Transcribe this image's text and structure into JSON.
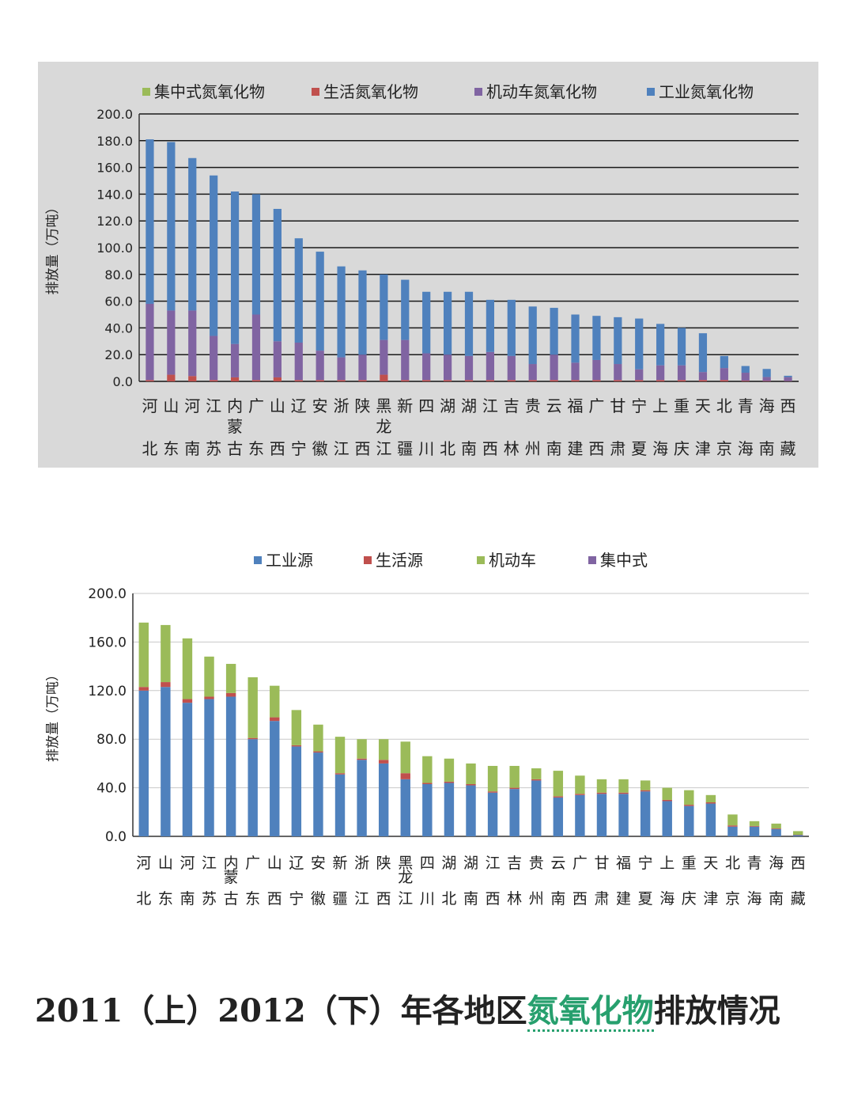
{
  "charts": [
    {
      "type": "bar",
      "stacked": true,
      "ylabel": "排放量（万吨）",
      "ylim": [
        0,
        200
      ],
      "yticks": [
        "0.0",
        "20.0",
        "40.0",
        "60.0",
        "80.0",
        "100.0",
        "120.0",
        "140.0",
        "160.0",
        "180.0",
        "200.0"
      ],
      "grid": true,
      "legend_position": "top",
      "legend": [
        {
          "name": "集中式氮氧化物",
          "color": "#9bbb59"
        },
        {
          "name": "生活氮氧化物",
          "color": "#c0504d"
        },
        {
          "name": "机动车氮氧化物",
          "color": "#8064a2"
        },
        {
          "name": "工业氮氧化物",
          "color": "#4f81bd"
        }
      ],
      "categories": [
        "河北",
        "山东",
        "河南",
        "江苏",
        "内蒙古",
        "广东",
        "山西",
        "辽宁",
        "安徽",
        "浙江",
        "陕西",
        "黑龙江",
        "新疆",
        "四川",
        "湖北",
        "湖南",
        "江西",
        "吉林",
        "贵州",
        "云南",
        "福建",
        "广西",
        "甘肃",
        "宁夏",
        "上海",
        "重庆",
        "天津",
        "北京",
        "青海",
        "海南",
        "西藏"
      ],
      "category_labels": [
        [
          "河",
          "北"
        ],
        [
          "山",
          "东"
        ],
        [
          "河",
          "南"
        ],
        [
          "江",
          "苏"
        ],
        [
          "内蒙",
          "古"
        ],
        [
          "广",
          "东"
        ],
        [
          "山",
          "西"
        ],
        [
          "辽",
          "宁"
        ],
        [
          "安",
          "徽"
        ],
        [
          "浙",
          "江"
        ],
        [
          "陕",
          "西"
        ],
        [
          "黑龙",
          "江"
        ],
        [
          "新",
          "疆"
        ],
        [
          "四",
          "川"
        ],
        [
          "湖",
          "北"
        ],
        [
          "湖",
          "南"
        ],
        [
          "江",
          "西"
        ],
        [
          "吉",
          "林"
        ],
        [
          "贵",
          "州"
        ],
        [
          "云",
          "南"
        ],
        [
          "福",
          "建"
        ],
        [
          "广",
          "西"
        ],
        [
          "甘",
          "肃"
        ],
        [
          "宁",
          "夏"
        ],
        [
          "上",
          "海"
        ],
        [
          "重",
          "庆"
        ],
        [
          "天",
          "津"
        ],
        [
          "北",
          "京"
        ],
        [
          "青",
          "海"
        ],
        [
          "海",
          "南"
        ],
        [
          "西",
          "藏"
        ]
      ],
      "series": [
        {
          "name": "生活氮氧化物",
          "color": "#c0504d",
          "values": [
            1,
            5,
            4,
            1,
            3,
            1,
            3,
            1,
            1,
            1,
            1,
            5,
            1,
            1,
            1,
            1,
            1,
            1,
            1,
            1,
            1,
            1,
            1,
            1,
            1,
            1,
            1,
            1,
            0.5,
            0.3,
            0.2
          ]
        },
        {
          "name": "机动车氮氧化物",
          "color": "#8064a2",
          "values": [
            57,
            48,
            49,
            33,
            25,
            49,
            27,
            28,
            22,
            17,
            19,
            26,
            30,
            20,
            19,
            18,
            21,
            18,
            12,
            19,
            13,
            15,
            12,
            8,
            11,
            11,
            6,
            9,
            6,
            3,
            3
          ]
        },
        {
          "name": "工业氮氧化物",
          "color": "#4f81bd",
          "values": [
            123,
            126,
            114,
            120,
            114,
            90,
            99,
            78,
            74,
            68,
            63,
            49,
            45,
            46,
            47,
            48,
            39,
            42,
            43,
            35,
            36,
            33,
            35,
            38,
            31,
            28,
            29,
            9,
            5,
            6,
            1
          ]
        },
        {
          "name": "集中式氮氧化物",
          "color": "#9bbb59",
          "values": [
            0,
            0,
            0,
            0,
            0,
            0,
            0,
            0,
            0,
            0,
            0,
            0,
            0,
            0,
            0,
            0,
            0,
            0,
            0,
            0,
            0,
            0,
            0,
            0,
            0,
            0,
            0,
            0,
            0,
            0,
            0
          ]
        }
      ]
    },
    {
      "type": "bar",
      "stacked": true,
      "ylabel": "排放量（万吨）",
      "ylim": [
        0,
        200
      ],
      "yticks": [
        "0.0",
        "40.0",
        "80.0",
        "120.0",
        "160.0",
        "200.0"
      ],
      "grid": true,
      "legend_position": "top",
      "legend": [
        {
          "name": "工业源",
          "color": "#4f81bd"
        },
        {
          "name": "生活源",
          "color": "#c0504d"
        },
        {
          "name": "机动车",
          "color": "#9bbb59"
        },
        {
          "name": "集中式",
          "color": "#8064a2"
        }
      ],
      "categories": [
        "河北",
        "山东",
        "河南",
        "江苏",
        "内蒙古",
        "广东",
        "山西",
        "辽宁",
        "安徽",
        "新疆",
        "浙江",
        "陕西",
        "黑龙江",
        "四川",
        "湖北",
        "湖南",
        "江西",
        "吉林",
        "贵州",
        "云南",
        "广西",
        "甘肃",
        "福建",
        "宁夏",
        "上海",
        "重庆",
        "天津",
        "北京",
        "青海",
        "海南",
        "西藏"
      ],
      "category_labels": [
        [
          "河",
          "北"
        ],
        [
          "山",
          "东"
        ],
        [
          "河",
          "南"
        ],
        [
          "江",
          "苏"
        ],
        [
          "内蒙",
          "古"
        ],
        [
          "广",
          "东"
        ],
        [
          "山",
          "西"
        ],
        [
          "辽",
          "宁"
        ],
        [
          "安",
          "徽"
        ],
        [
          "新",
          "疆"
        ],
        [
          "浙",
          "江"
        ],
        [
          "陕",
          "西"
        ],
        [
          "黑龙",
          "江"
        ],
        [
          "四",
          "川"
        ],
        [
          "湖",
          "北"
        ],
        [
          "湖",
          "南"
        ],
        [
          "江",
          "西"
        ],
        [
          "吉",
          "林"
        ],
        [
          "贵",
          "州"
        ],
        [
          "云",
          "南"
        ],
        [
          "广",
          "西"
        ],
        [
          "甘",
          "肃"
        ],
        [
          "福",
          "建"
        ],
        [
          "宁",
          "夏"
        ],
        [
          "上",
          "海"
        ],
        [
          "重",
          "庆"
        ],
        [
          "天",
          "津"
        ],
        [
          "北",
          "京"
        ],
        [
          "青",
          "海"
        ],
        [
          "海",
          "南"
        ],
        [
          "西",
          "藏"
        ]
      ],
      "series": [
        {
          "name": "工业源",
          "color": "#4f81bd",
          "values": [
            120,
            123,
            110,
            113,
            115,
            80,
            95,
            74,
            69,
            51,
            63,
            60,
            47,
            43,
            44,
            42,
            36,
            39,
            46,
            32,
            34,
            35,
            35,
            37,
            29,
            25,
            27,
            8,
            8,
            6,
            1
          ]
        },
        {
          "name": "生活源",
          "color": "#c0504d",
          "values": [
            3,
            4,
            3,
            2,
            3,
            1,
            3,
            1,
            1,
            1,
            1,
            3,
            5,
            1,
            1,
            1,
            1,
            1,
            1,
            1,
            1,
            1,
            1,
            1,
            1,
            1,
            1,
            1,
            0.5,
            0.5,
            0.3
          ]
        },
        {
          "name": "机动车",
          "color": "#9bbb59",
          "values": [
            53,
            47,
            50,
            33,
            24,
            50,
            26,
            29,
            22,
            30,
            16,
            17,
            26,
            22,
            19,
            17,
            21,
            18,
            9,
            21,
            15,
            11,
            11,
            8,
            10,
            12,
            6,
            9,
            4,
            4,
            3
          ]
        },
        {
          "name": "集中式",
          "color": "#8064a2",
          "values": [
            0,
            0,
            0,
            0,
            0,
            0,
            0,
            0,
            0,
            0,
            0,
            0,
            0,
            0,
            0,
            0,
            0,
            0,
            0,
            0,
            0,
            0,
            0,
            0,
            0,
            0,
            0,
            0,
            0,
            0,
            0
          ]
        }
      ]
    }
  ],
  "caption": {
    "part1": "2011（上）2012（下）年各地区",
    "link": "氮氧化物",
    "part2": "排放情况"
  }
}
